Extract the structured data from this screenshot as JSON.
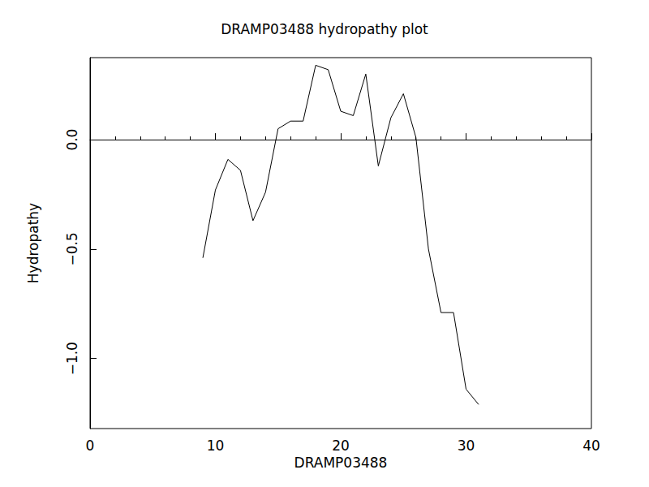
{
  "chart_data": {
    "type": "line",
    "title": "DRAMP03488 hydropathy plot",
    "x_label": "DRAMP03488",
    "y_label": "Hydropathy",
    "x": [
      9,
      10,
      11,
      12,
      13,
      14,
      15,
      16,
      17,
      18,
      19,
      20,
      21,
      22,
      23,
      24,
      25,
      26,
      27,
      28,
      29,
      30,
      31
    ],
    "values": [
      -0.54,
      -0.23,
      -0.09,
      -0.14,
      -0.37,
      -0.24,
      0.05,
      0.085,
      0.085,
      0.34,
      0.32,
      0.13,
      0.11,
      0.3,
      -0.12,
      0.1,
      0.21,
      0.01,
      -0.5,
      -0.79,
      -0.79,
      -1.14,
      -1.21
    ],
    "color": "#000000",
    "xlim": [
      0,
      40
    ],
    "xticks": [
      0,
      10,
      20,
      30,
      40
    ],
    "ylim": [
      -1.32,
      0.375
    ],
    "yticks": [
      {
        "value": -1,
        "label": "−1.0"
      },
      {
        "value": -0.5,
        "label": "−0.5"
      },
      {
        "value": 0,
        "label": "0.0"
      }
    ],
    "grid": false
  }
}
